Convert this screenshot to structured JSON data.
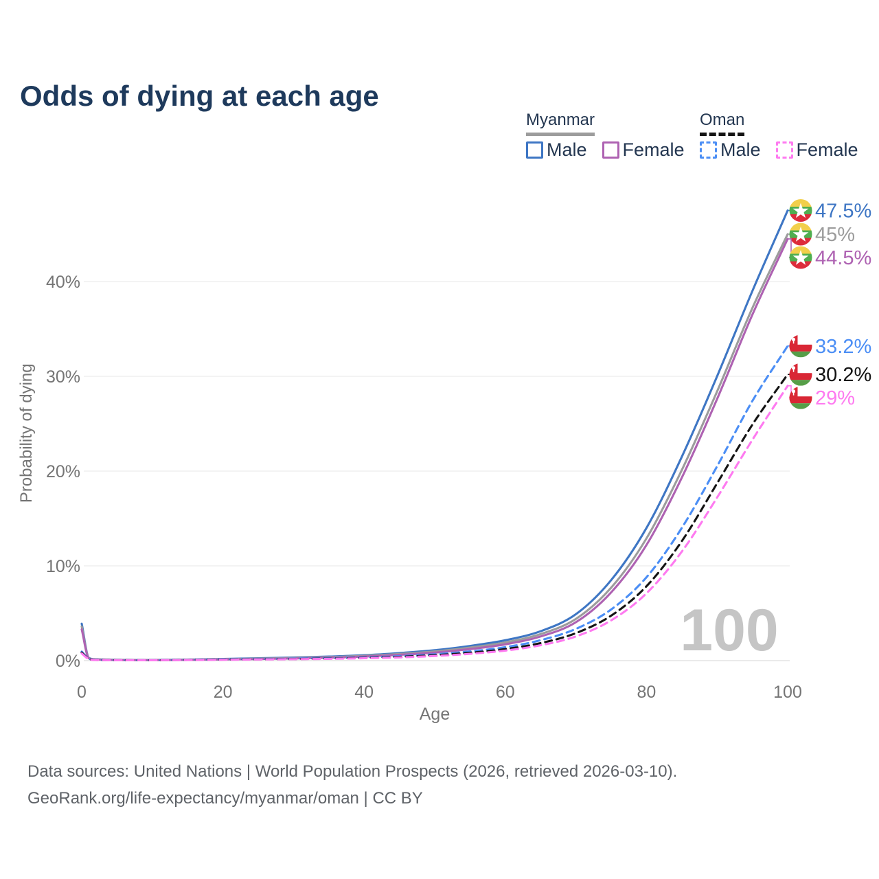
{
  "title": "Odds of dying at each age",
  "legend": {
    "groups": [
      {
        "name": "Myanmar",
        "line_style": "solid",
        "underline_color": "#9c9c9c",
        "items": [
          {
            "label": "Male",
            "color": "#3e76c4"
          },
          {
            "label": "Female",
            "color": "#ae62b2"
          }
        ]
      },
      {
        "name": "Oman",
        "line_style": "dashed",
        "underline_color": "#141414",
        "items": [
          {
            "label": "Male",
            "color": "#4b8ef5"
          },
          {
            "label": "Female",
            "color": "#fe7af0"
          }
        ]
      }
    ]
  },
  "chart_data": {
    "type": "line",
    "title": "Odds of dying at each age",
    "xlabel": "Age",
    "ylabel": "Probability of dying",
    "xlim": [
      0,
      100
    ],
    "ylim": [
      0,
      48
    ],
    "x_ticks": [
      0,
      20,
      40,
      60,
      80,
      100
    ],
    "y_ticks": [
      0,
      10,
      20,
      30,
      40
    ],
    "y_tick_labels": [
      "0%",
      "10%",
      "20%",
      "30%",
      "40%"
    ],
    "grid": "horizontal",
    "legend_position": "top-right",
    "watermark": "100",
    "x": [
      0,
      1,
      2,
      5,
      10,
      15,
      20,
      25,
      30,
      35,
      40,
      45,
      50,
      55,
      60,
      65,
      70,
      75,
      80,
      85,
      90,
      95,
      100
    ],
    "series": [
      {
        "name": "Myanmar Male",
        "country": "Myanmar",
        "sex": "Male",
        "line_style": "solid",
        "color": "#3e76c4",
        "flag": "myanmar",
        "end_label": "47.5%",
        "end_value": 47.5,
        "values": [
          3.9,
          0.3,
          0.14,
          0.08,
          0.07,
          0.11,
          0.18,
          0.25,
          0.33,
          0.43,
          0.57,
          0.8,
          1.1,
          1.55,
          2.15,
          3.1,
          4.9,
          8.5,
          14.0,
          21.5,
          30.0,
          39.0,
          47.5
        ]
      },
      {
        "name": "Myanmar",
        "country": "Myanmar",
        "sex": "Both",
        "line_style": "solid",
        "color": "#9c9c9c",
        "flag": "myanmar",
        "end_label": "45%",
        "end_value": 45,
        "values": [
          3.6,
          0.27,
          0.12,
          0.07,
          0.06,
          0.09,
          0.15,
          0.21,
          0.28,
          0.37,
          0.5,
          0.7,
          0.97,
          1.38,
          1.92,
          2.8,
          4.4,
          7.7,
          12.9,
          20.1,
          28.4,
          37.2,
          45.0
        ]
      },
      {
        "name": "Myanmar Female",
        "country": "Myanmar",
        "sex": "Female",
        "line_style": "solid",
        "color": "#ae62b2",
        "flag": "myanmar",
        "end_label": "44.5%",
        "end_value": 44.5,
        "values": [
          3.3,
          0.24,
          0.11,
          0.06,
          0.05,
          0.08,
          0.12,
          0.17,
          0.23,
          0.31,
          0.43,
          0.61,
          0.85,
          1.22,
          1.72,
          2.55,
          4.05,
          7.2,
          12.2,
          19.3,
          27.6,
          36.5,
          44.5
        ]
      },
      {
        "name": "Oman Male",
        "country": "Oman",
        "sex": "Male",
        "line_style": "dashed",
        "color": "#4b8ef5",
        "flag": "oman",
        "end_label": "33.2%",
        "end_value": 33.2,
        "values": [
          0.95,
          0.2,
          0.08,
          0.05,
          0.05,
          0.08,
          0.13,
          0.17,
          0.21,
          0.26,
          0.34,
          0.47,
          0.67,
          0.97,
          1.42,
          2.15,
          3.35,
          5.4,
          8.8,
          14.0,
          20.5,
          27.4,
          33.2
        ]
      },
      {
        "name": "Oman",
        "country": "Oman",
        "sex": "Both",
        "line_style": "dashed",
        "color": "#141414",
        "flag": "oman",
        "end_label": "30.2%",
        "end_value": 30.2,
        "values": [
          0.85,
          0.18,
          0.07,
          0.05,
          0.04,
          0.07,
          0.11,
          0.14,
          0.17,
          0.22,
          0.29,
          0.4,
          0.57,
          0.83,
          1.22,
          1.85,
          2.9,
          4.75,
          7.85,
          12.6,
          18.7,
          24.9,
          30.2
        ]
      },
      {
        "name": "Oman Female",
        "country": "Oman",
        "sex": "Female",
        "line_style": "dashed",
        "color": "#fe7af0",
        "flag": "oman",
        "end_label": "29%",
        "end_value": 29,
        "values": [
          0.75,
          0.16,
          0.06,
          0.04,
          0.04,
          0.06,
          0.09,
          0.12,
          0.15,
          0.19,
          0.25,
          0.34,
          0.49,
          0.72,
          1.06,
          1.62,
          2.55,
          4.25,
          7.1,
          11.5,
          17.2,
          23.3,
          29.0
        ]
      }
    ],
    "flags": {
      "myanmar": {
        "yellow": "#f2cf4b",
        "green": "#4fae50",
        "red": "#dd2c3b",
        "star": "#ffffff"
      },
      "oman": {
        "white": "#ffffff",
        "red": "#d92735",
        "green": "#569e48"
      }
    }
  },
  "footer": {
    "line1": "Data sources: United Nations | World Population Prospects (2026, retrieved 2026-03-10).",
    "line2": "GeoRank.org/life-expectancy/myanmar/oman | CC BY"
  }
}
